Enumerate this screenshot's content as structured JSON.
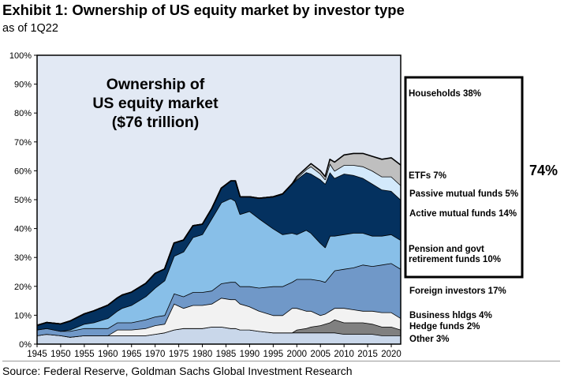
{
  "header": {
    "title": "Exhibit 1: Ownership of US equity market by investor type",
    "subtitle": "as of 1Q22"
  },
  "footer": {
    "source": "Source: Federal Reserve, Goldman Sachs Global Investment Research"
  },
  "chart_data": {
    "type": "area",
    "stacked": true,
    "title": "Ownership of US equity market by investor type",
    "inset_title": [
      "Ownership of",
      "US equity market",
      "($76 trillion)"
    ],
    "xlabel": "",
    "ylabel": "",
    "xlim": [
      1945,
      2022
    ],
    "ylim": [
      0,
      100
    ],
    "x_ticks": [
      1945,
      1950,
      1955,
      1960,
      1965,
      1970,
      1975,
      1980,
      1985,
      1990,
      1995,
      2000,
      2005,
      2010,
      2015,
      2020
    ],
    "y_ticks": [
      "0%",
      "10%",
      "20%",
      "30%",
      "40%",
      "50%",
      "60%",
      "70%",
      "80%",
      "90%",
      "100%"
    ],
    "grid": false,
    "x": [
      1945,
      1947,
      1950,
      1952,
      1955,
      1957,
      1960,
      1962,
      1963,
      1965,
      1968,
      1970,
      1972,
      1974,
      1976,
      1978,
      1980,
      1982,
      1984,
      1986,
      1987,
      1988,
      1990,
      1992,
      1995,
      1997,
      1999,
      2000,
      2002,
      2003,
      2005,
      2006,
      2007,
      2008,
      2010,
      2012,
      2014,
      2016,
      2018,
      2020,
      2022
    ],
    "series": [
      {
        "name": "Other",
        "share_label": "Other 3%",
        "color": "#c9d7ea",
        "values": [
          3.0,
          3.5,
          3.0,
          2.5,
          3.0,
          3.0,
          3.0,
          3.0,
          3.0,
          3.0,
          3.0,
          3.5,
          4.0,
          5.0,
          5.5,
          5.5,
          5.5,
          6.0,
          6.0,
          5.5,
          5.5,
          5.0,
          5.0,
          4.5,
          4.0,
          4.0,
          4.0,
          4.0,
          4.0,
          4.0,
          4.0,
          4.0,
          4.0,
          4.0,
          3.5,
          3.5,
          3.5,
          3.5,
          3.0,
          3.0,
          3.0
        ]
      },
      {
        "name": "Hedge funds",
        "share_label": "Hedge funds 2%",
        "color": "#808080",
        "values": [
          0,
          0,
          0,
          0,
          0,
          0,
          0,
          0,
          0,
          0,
          0,
          0,
          0,
          0,
          0,
          0,
          0,
          0,
          0,
          0,
          0,
          0,
          0,
          0,
          0,
          0,
          0,
          1.0,
          1.5,
          2.0,
          2.5,
          3.0,
          3.5,
          4.5,
          4.0,
          4.0,
          4.0,
          3.5,
          3.0,
          3.0,
          2.0
        ]
      },
      {
        "name": "Business hldgs",
        "share_label": "Business hldgs 4%",
        "color": "#f2f2f2",
        "values": [
          0,
          0,
          0,
          0,
          0,
          0,
          0,
          2.0,
          2.0,
          2.0,
          2.5,
          3.0,
          3.0,
          9.0,
          7.0,
          8.0,
          8.0,
          8.0,
          10.0,
          10.0,
          10.0,
          9.0,
          8.0,
          7.0,
          6.0,
          6.0,
          8.5,
          7.5,
          6.0,
          5.5,
          3.5,
          3.5,
          4.0,
          4.0,
          5.0,
          4.5,
          4.0,
          4.5,
          5.0,
          5.0,
          4.0
        ]
      },
      {
        "name": "Foreign investors",
        "share_label": "Foreign investors 17%",
        "color": "#7098c8",
        "values": [
          2.0,
          2.0,
          1.5,
          2.0,
          2.5,
          2.5,
          2.5,
          2.5,
          2.5,
          2.5,
          3.0,
          3.0,
          3.0,
          3.5,
          4.0,
          4.5,
          4.5,
          4.5,
          5.0,
          6.0,
          6.0,
          6.0,
          7.0,
          8.0,
          10.0,
          10.0,
          9.0,
          10.0,
          11.0,
          11.0,
          12.0,
          11.0,
          12.0,
          13.0,
          13.5,
          14.5,
          16.0,
          15.5,
          16.5,
          17.0,
          17.0
        ]
      },
      {
        "name": "Pension and govt retirement funds",
        "share_label": "Pension and govt retirement funds 10%",
        "color": "#88bfe8",
        "values": [
          0,
          0,
          0,
          0.5,
          1.5,
          2.0,
          3.5,
          4.0,
          5.0,
          6.0,
          8.0,
          10.0,
          12.0,
          13.0,
          15.5,
          19.0,
          20.0,
          25.0,
          28.0,
          29.0,
          28.0,
          25.0,
          26.0,
          24.0,
          20.0,
          18.0,
          17.0,
          15.5,
          17.0,
          16.0,
          13.0,
          12.0,
          14.0,
          12.0,
          12.0,
          12.0,
          11.0,
          10.5,
          10.0,
          10.0,
          10.0
        ]
      },
      {
        "name": "Active mutual funds",
        "share_label": "Active mutual funds 14%",
        "color": "#04315f",
        "values": [
          1.5,
          2.0,
          2.5,
          3.0,
          3.5,
          4.0,
          4.5,
          4.5,
          4.5,
          4.5,
          4.5,
          5.0,
          4.0,
          4.5,
          4.0,
          4.0,
          3.5,
          3.5,
          5.0,
          6.0,
          7.0,
          6.0,
          5.0,
          7.0,
          11.0,
          14.0,
          17.0,
          19.0,
          20.0,
          20.5,
          22.0,
          22.0,
          22.0,
          20.0,
          21.0,
          20.0,
          19.0,
          18.0,
          16.0,
          15.0,
          14.0
        ]
      },
      {
        "name": "Passive mutual funds",
        "share_label": "Passive mutual funds 5%",
        "color": "#d3e9fb",
        "values": [
          0,
          0,
          0,
          0,
          0,
          0,
          0,
          0,
          0,
          0,
          0,
          0,
          0,
          0,
          0,
          0,
          0,
          0,
          0,
          0,
          0,
          0,
          0,
          0,
          0,
          0,
          0,
          0.5,
          1.0,
          2.5,
          2.0,
          1.5,
          3.0,
          2.5,
          3.0,
          3.5,
          4.0,
          4.5,
          4.5,
          5.0,
          5.0
        ]
      },
      {
        "name": "ETFs",
        "share_label": "ETFs 7%",
        "color": "#bfbfbf",
        "values": [
          0,
          0,
          0,
          0,
          0,
          0,
          0,
          0,
          0,
          0,
          0,
          0,
          0,
          0,
          0,
          0,
          0,
          0,
          0,
          0,
          0,
          0,
          0,
          0,
          0,
          0,
          0,
          0.5,
          0.5,
          1.0,
          1.0,
          1.0,
          1.5,
          3.0,
          3.5,
          4.0,
          4.5,
          5.0,
          6.0,
          6.5,
          7.0
        ]
      },
      {
        "name": "Households",
        "share_label": "Households 38%",
        "color": "#e2e9f4",
        "values": "remainder to 100%"
      }
    ],
    "bracket": {
      "label": "74%",
      "members": [
        "Households",
        "ETFs",
        "Passive mutual funds",
        "Active mutual funds",
        "Pension and govt retirement funds"
      ]
    },
    "legend": "right"
  }
}
